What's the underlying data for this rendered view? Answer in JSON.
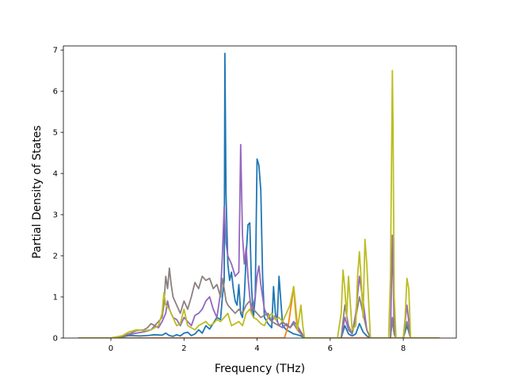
{
  "chart_data": {
    "type": "line",
    "xlabel": "Frequency (THz)",
    "ylabel": "Partial Density of States",
    "xlim": [
      -1.3,
      9.45
    ],
    "ylim": [
      0,
      7.1
    ],
    "xticks": [
      0,
      2,
      4,
      6,
      8
    ],
    "yticks": [
      0,
      1,
      2,
      3,
      4,
      5,
      6,
      7
    ],
    "grid": false,
    "legend": "none",
    "series": [
      {
        "color": "#1f77b4",
        "x": [
          -0.9,
          0.0,
          0.3,
          0.5,
          0.8,
          1.0,
          1.2,
          1.4,
          1.5,
          1.6,
          1.7,
          1.8,
          1.9,
          2.0,
          2.1,
          2.2,
          2.3,
          2.4,
          2.5,
          2.6,
          2.7,
          2.8,
          2.9,
          3.0,
          3.05,
          3.1,
          3.12,
          3.15,
          3.2,
          3.25,
          3.3,
          3.35,
          3.4,
          3.45,
          3.5,
          3.55,
          3.6,
          3.65,
          3.7,
          3.75,
          3.8,
          3.85,
          3.9,
          3.95,
          4.0,
          4.05,
          4.1,
          4.15,
          4.2,
          4.3,
          4.4,
          4.45,
          4.5,
          4.55,
          4.6,
          4.65,
          4.7,
          4.8,
          4.9,
          5.0,
          5.1,
          5.2,
          5.3,
          5.5,
          6.0,
          6.3,
          6.4,
          6.5,
          6.6,
          6.7,
          6.8,
          6.9,
          7.0,
          7.1,
          7.5,
          7.65,
          7.7,
          7.75,
          7.8,
          8.0,
          8.1,
          8.2,
          8.5,
          8.95
        ],
        "y": [
          0,
          0,
          0.03,
          0.06,
          0.05,
          0.06,
          0.08,
          0.07,
          0.12,
          0.06,
          0.04,
          0.08,
          0.05,
          0.12,
          0.14,
          0.06,
          0.1,
          0.2,
          0.12,
          0.3,
          0.22,
          0.36,
          0.5,
          0.45,
          1.0,
          1.4,
          6.92,
          3.5,
          1.8,
          1.4,
          1.6,
          1.2,
          0.9,
          0.8,
          1.3,
          0.6,
          0.5,
          1.0,
          2.0,
          2.75,
          2.8,
          1.2,
          0.5,
          1.0,
          4.35,
          4.2,
          3.6,
          1.5,
          0.5,
          0.35,
          0.25,
          1.25,
          0.6,
          0.4,
          1.5,
          0.9,
          0.3,
          0.2,
          0.15,
          0.1,
          0.08,
          0.05,
          0,
          0,
          0,
          0,
          0.3,
          0.1,
          0.05,
          0.1,
          0.35,
          0.15,
          0.05,
          0,
          0,
          0,
          0.45,
          0.1,
          0,
          0,
          0.3,
          0,
          0,
          0
        ]
      },
      {
        "color": "#ff7f0e",
        "x": [
          -0.9,
          0.0,
          4.75,
          4.85,
          4.95,
          5.0,
          5.05,
          5.1,
          5.2,
          5.3,
          9.0
        ],
        "y": [
          0,
          0,
          0,
          0.3,
          0.9,
          1.25,
          0.8,
          0.3,
          0.1,
          0,
          0
        ]
      },
      {
        "color": "#9467bd",
        "x": [
          -0.9,
          0.0,
          0.3,
          0.5,
          0.7,
          0.9,
          1.1,
          1.2,
          1.3,
          1.4,
          1.5,
          1.55,
          1.6,
          1.7,
          1.8,
          1.9,
          2.0,
          2.1,
          2.2,
          2.3,
          2.4,
          2.5,
          2.6,
          2.7,
          2.8,
          2.9,
          3.0,
          3.05,
          3.1,
          3.15,
          3.2,
          3.3,
          3.4,
          3.5,
          3.55,
          3.6,
          3.65,
          3.7,
          3.75,
          3.8,
          3.85,
          3.9,
          3.95,
          4.0,
          4.05,
          4.1,
          4.2,
          4.3,
          4.4,
          4.5,
          4.6,
          4.7,
          4.8,
          4.9,
          5.0,
          5.1,
          5.2,
          5.3,
          6.0,
          6.3,
          6.4,
          6.5,
          6.6,
          6.7,
          6.8,
          6.9,
          7.0,
          7.1,
          7.5,
          7.65,
          7.7,
          7.75,
          7.8,
          8.0,
          8.1,
          8.2,
          8.5,
          8.95
        ],
        "y": [
          0,
          0,
          0.05,
          0.08,
          0.12,
          0.15,
          0.2,
          0.3,
          0.25,
          0.4,
          0.6,
          0.9,
          0.7,
          0.5,
          0.45,
          0.3,
          0.5,
          0.4,
          0.3,
          0.55,
          0.6,
          0.7,
          0.9,
          1.0,
          0.7,
          0.5,
          1.1,
          2.0,
          3.2,
          2.3,
          2.0,
          1.8,
          1.5,
          1.6,
          4.7,
          2.5,
          1.8,
          2.2,
          1.5,
          1.0,
          0.6,
          0.8,
          1.0,
          1.5,
          1.75,
          1.3,
          0.7,
          0.5,
          0.4,
          0.55,
          0.3,
          0.25,
          0.35,
          0.25,
          0.4,
          0.3,
          0.15,
          0,
          0,
          0,
          0.5,
          0.2,
          0.1,
          0.6,
          1.5,
          0.9,
          0.2,
          0,
          0,
          0,
          2.5,
          0.2,
          0,
          0,
          0.8,
          0,
          0,
          0
        ]
      },
      {
        "color": "#8c8080",
        "x": [
          -0.9,
          0.0,
          0.3,
          0.5,
          0.7,
          0.9,
          1.0,
          1.1,
          1.2,
          1.3,
          1.4,
          1.45,
          1.5,
          1.55,
          1.6,
          1.65,
          1.7,
          1.8,
          1.9,
          2.0,
          2.1,
          2.2,
          2.3,
          2.4,
          2.5,
          2.6,
          2.7,
          2.8,
          2.9,
          3.0,
          3.05,
          3.1,
          3.15,
          3.2,
          3.3,
          3.4,
          3.5,
          3.6,
          3.7,
          3.8,
          3.9,
          4.0,
          4.1,
          4.2,
          4.3,
          4.4,
          4.5,
          4.6,
          4.7,
          4.8,
          4.9,
          5.0,
          5.1,
          5.2,
          5.3,
          6.0,
          6.3,
          6.4,
          6.5,
          6.6,
          6.7,
          6.8,
          6.9,
          7.0,
          7.1,
          7.5,
          7.65,
          7.7,
          7.75,
          7.8,
          8.0,
          8.1,
          8.2,
          8.5,
          8.95
        ],
        "y": [
          0,
          0,
          0.05,
          0.1,
          0.18,
          0.2,
          0.25,
          0.35,
          0.3,
          0.4,
          0.5,
          0.8,
          1.5,
          1.2,
          1.7,
          1.3,
          1.0,
          0.8,
          0.6,
          0.9,
          0.7,
          1.0,
          1.35,
          1.2,
          1.5,
          1.4,
          1.45,
          1.2,
          1.3,
          1.0,
          1.45,
          1.2,
          0.9,
          0.8,
          0.7,
          0.6,
          0.7,
          0.6,
          0.8,
          0.9,
          0.7,
          0.6,
          0.5,
          0.55,
          0.6,
          0.4,
          0.35,
          0.3,
          0.4,
          0.3,
          0.25,
          0.35,
          0.2,
          0.1,
          0,
          0,
          0,
          0.8,
          0.3,
          0.1,
          0.5,
          1.0,
          0.6,
          0.2,
          0,
          0,
          0,
          0.5,
          0.1,
          0,
          0,
          0.4,
          0,
          0,
          0
        ]
      },
      {
        "color": "#bcbd22",
        "x": [
          -0.9,
          0.0,
          0.3,
          0.5,
          0.7,
          0.9,
          1.1,
          1.2,
          1.3,
          1.4,
          1.45,
          1.5,
          1.6,
          1.7,
          1.8,
          1.9,
          2.0,
          2.1,
          2.2,
          2.3,
          2.4,
          2.5,
          2.6,
          2.7,
          2.8,
          2.9,
          3.0,
          3.1,
          3.2,
          3.3,
          3.4,
          3.5,
          3.6,
          3.7,
          3.8,
          3.9,
          4.0,
          4.1,
          4.2,
          4.3,
          4.4,
          4.5,
          4.6,
          4.7,
          4.8,
          4.9,
          5.0,
          5.05,
          5.1,
          5.2,
          5.25,
          5.3,
          6.0,
          6.2,
          6.3,
          6.35,
          6.4,
          6.45,
          6.5,
          6.6,
          6.7,
          6.75,
          6.8,
          6.85,
          6.9,
          6.95,
          7.0,
          7.1,
          7.5,
          7.6,
          7.65,
          7.7,
          7.72,
          7.75,
          7.8,
          8.0,
          8.05,
          8.1,
          8.15,
          8.2,
          8.5,
          8.95
        ],
        "y": [
          0,
          0,
          0.05,
          0.15,
          0.2,
          0.18,
          0.2,
          0.25,
          0.3,
          0.6,
          1.1,
          0.8,
          0.7,
          0.5,
          0.3,
          0.35,
          0.7,
          0.3,
          0.25,
          0.2,
          0.3,
          0.35,
          0.4,
          0.3,
          0.35,
          0.45,
          0.4,
          0.5,
          0.6,
          0.3,
          0.35,
          0.4,
          0.3,
          0.6,
          0.7,
          0.5,
          0.45,
          0.35,
          0.3,
          0.5,
          0.6,
          0.45,
          0.5,
          0.4,
          0.6,
          0.8,
          1.25,
          0.6,
          0.2,
          0.8,
          0.3,
          0,
          0,
          0,
          0.6,
          1.65,
          1.2,
          0.5,
          1.5,
          0.2,
          0.3,
          1.5,
          2.1,
          1.4,
          0.5,
          2.4,
          1.8,
          0,
          0,
          0,
          1.5,
          6.5,
          5.0,
          1.0,
          0,
          0,
          0.5,
          1.45,
          1.2,
          0,
          0,
          0
        ]
      }
    ]
  }
}
